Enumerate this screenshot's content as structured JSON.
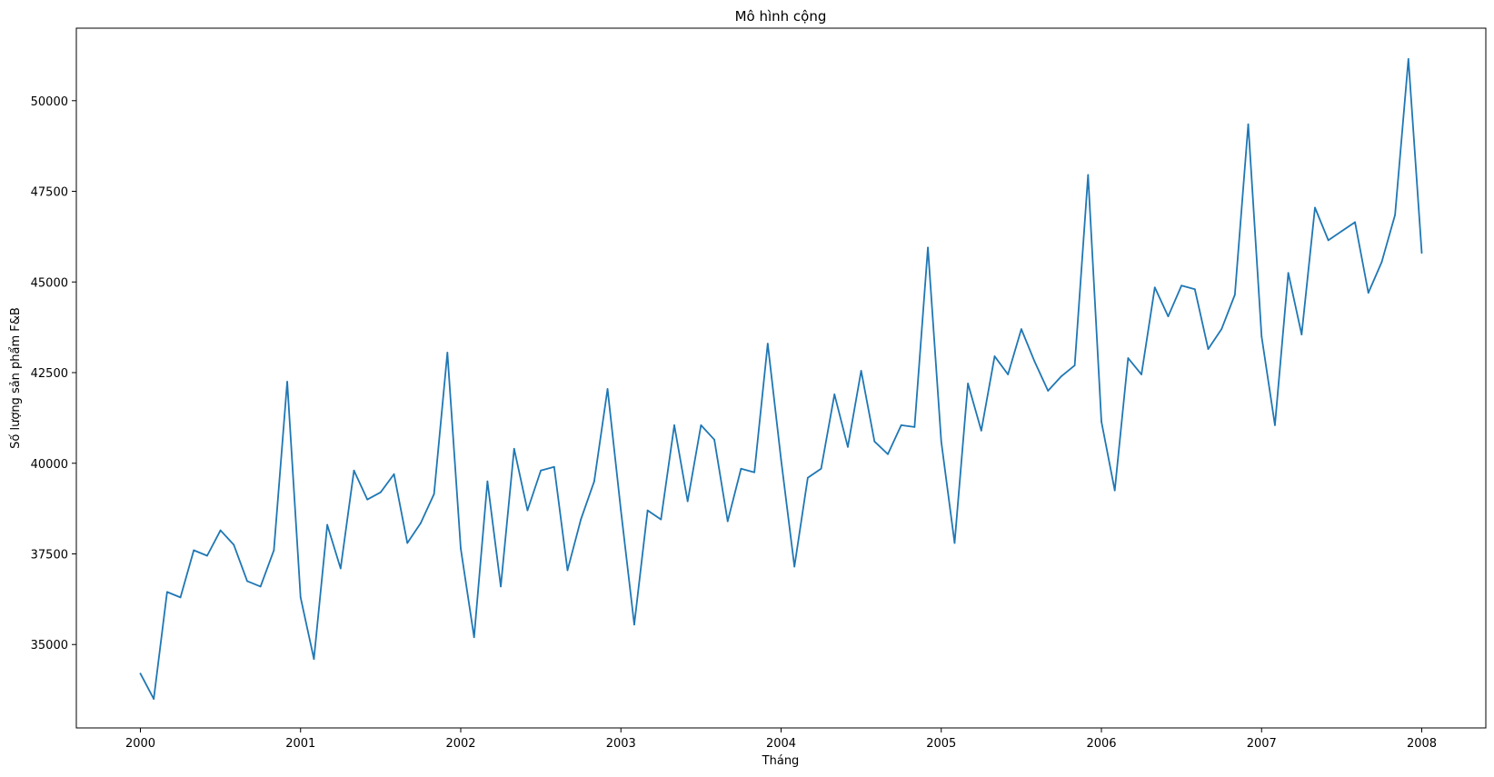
{
  "chart_data": {
    "type": "line",
    "title": "Mô hình cộng",
    "xlabel": "Tháng",
    "ylabel": "Số lượng sản phẩm F&B",
    "xlim": [
      1999.6,
      2008.4
    ],
    "ylim": [
      32700,
      52000
    ],
    "x_ticks": [
      2000,
      2001,
      2002,
      2003,
      2004,
      2005,
      2006,
      2007,
      2008
    ],
    "y_ticks": [
      35000,
      37500,
      40000,
      42500,
      45000,
      47500,
      50000
    ],
    "grid": false,
    "series": [
      {
        "color": "#1f77b4",
        "start_year": 2000,
        "step_months": 1,
        "values": [
          34200,
          33500,
          36450,
          36300,
          37600,
          37450,
          38150,
          37750,
          36750,
          36600,
          37600,
          42250,
          36300,
          34600,
          38300,
          37100,
          39800,
          39000,
          39200,
          39700,
          37800,
          38350,
          39150,
          43050,
          37650,
          35200,
          39500,
          36600,
          40400,
          38700,
          39800,
          39900,
          37050,
          38450,
          39500,
          42050,
          38700,
          35550,
          38700,
          38450,
          41050,
          38950,
          41050,
          40650,
          38400,
          39850,
          39750,
          43300,
          40100,
          37150,
          39600,
          39850,
          41900,
          40450,
          42550,
          40600,
          40250,
          41050,
          41000,
          45950,
          40600,
          37800,
          42200,
          40900,
          42950,
          42450,
          43700,
          42800,
          42000,
          42400,
          42700,
          47950,
          41150,
          39250,
          42900,
          42450,
          44850,
          44050,
          44900,
          44800,
          43150,
          43700,
          44650,
          49350,
          43500,
          41050,
          45250,
          43550,
          47050,
          46150,
          46400,
          46650,
          44700,
          45550,
          46850,
          51150,
          45800
        ]
      }
    ]
  }
}
